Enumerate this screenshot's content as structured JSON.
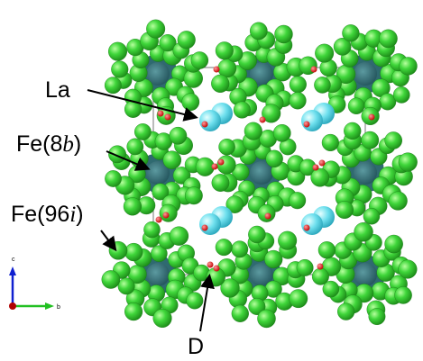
{
  "labels": {
    "la": "La",
    "fe8b": {
      "prefix": "Fe(8",
      "italic": "b",
      "suffix": ")"
    },
    "fe96i": {
      "prefix": "Fe(96",
      "italic": "i",
      "suffix": ")"
    },
    "d": "D"
  },
  "axes": {
    "c": "c",
    "b": "b"
  }
}
